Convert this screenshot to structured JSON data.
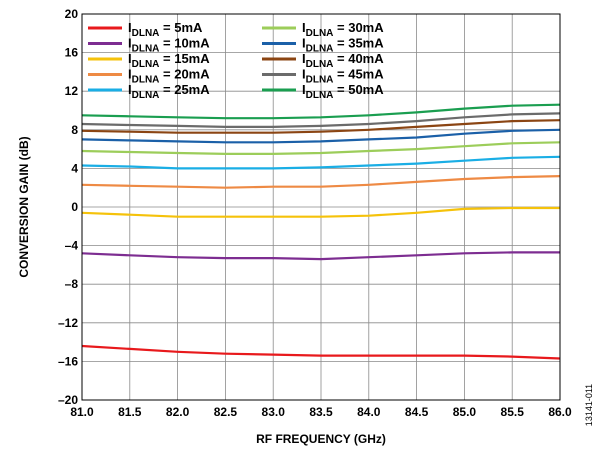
{
  "chart_data": {
    "type": "line",
    "title": "",
    "xlabel": "RF FREQUENCY (GHz)",
    "ylabel": "CONVERSION GAIN (dB)",
    "xlim": [
      81.0,
      86.0
    ],
    "ylim": [
      -20,
      20
    ],
    "x_ticks": [
      81.0,
      81.5,
      82.0,
      82.5,
      83.0,
      83.5,
      84.0,
      84.5,
      85.0,
      85.5,
      86.0
    ],
    "x_tick_labels": [
      "81.0",
      "81.5",
      "82.0",
      "82.5",
      "83.0",
      "83.5",
      "84.0",
      "84.5",
      "85.0",
      "85.5",
      "86.0"
    ],
    "y_ticks": [
      -20,
      -16,
      -12,
      -8,
      -4,
      0,
      4,
      8,
      12,
      16,
      20
    ],
    "y_tick_labels": [
      "–20",
      "–16",
      "–12",
      "–8",
      "–4",
      "0",
      "4",
      "8",
      "12",
      "16",
      "20"
    ],
    "grid": true,
    "legend_position": "top-left",
    "x": [
      81.0,
      81.5,
      82.0,
      82.5,
      83.0,
      83.5,
      84.0,
      84.5,
      85.0,
      85.5,
      86.0
    ],
    "series": [
      {
        "name": "I_DLNA = 5mA",
        "label_main": "I",
        "label_sub": "DLNA",
        "label_rest": " = 5mA",
        "color": "#e8191c",
        "values": [
          -14.4,
          -14.7,
          -15.0,
          -15.2,
          -15.3,
          -15.4,
          -15.4,
          -15.4,
          -15.4,
          -15.5,
          -15.7
        ]
      },
      {
        "name": "I_DLNA = 10mA",
        "label_main": "I",
        "label_sub": "DLNA",
        "label_rest": " = 10mA",
        "color": "#7d2d91",
        "values": [
          -4.8,
          -5.0,
          -5.2,
          -5.3,
          -5.3,
          -5.4,
          -5.2,
          -5.0,
          -4.8,
          -4.7,
          -4.7
        ]
      },
      {
        "name": "I_DLNA = 15mA",
        "label_main": "I",
        "label_sub": "DLNA",
        "label_rest": " = 15mA",
        "color": "#f5c20a",
        "values": [
          -0.6,
          -0.8,
          -1.0,
          -1.0,
          -1.0,
          -1.0,
          -0.9,
          -0.6,
          -0.2,
          -0.1,
          -0.1
        ]
      },
      {
        "name": "I_DLNA = 20mA",
        "label_main": "I",
        "label_sub": "DLNA",
        "label_rest": " = 20mA",
        "color": "#ee8a44",
        "values": [
          2.3,
          2.2,
          2.1,
          2.0,
          2.1,
          2.1,
          2.3,
          2.6,
          2.9,
          3.1,
          3.2
        ]
      },
      {
        "name": "I_DLNA = 25mA",
        "label_main": "I",
        "label_sub": "DLNA",
        "label_rest": " = 25mA",
        "color": "#1aaee5",
        "values": [
          4.3,
          4.2,
          4.0,
          4.0,
          4.0,
          4.1,
          4.3,
          4.5,
          4.8,
          5.1,
          5.2
        ]
      },
      {
        "name": "I_DLNA = 30mA",
        "label_main": "I",
        "label_sub": "DLNA",
        "label_rest": " = 30mA",
        "color": "#9ccd5a",
        "values": [
          5.8,
          5.7,
          5.6,
          5.5,
          5.5,
          5.6,
          5.8,
          6.0,
          6.3,
          6.6,
          6.7
        ]
      },
      {
        "name": "I_DLNA = 35mA",
        "label_main": "I",
        "label_sub": "DLNA",
        "label_rest": " = 35mA",
        "color": "#1b60a8",
        "values": [
          7.0,
          6.9,
          6.8,
          6.7,
          6.7,
          6.8,
          7.0,
          7.2,
          7.6,
          7.9,
          8.0
        ]
      },
      {
        "name": "I_DLNA = 40mA",
        "label_main": "I",
        "label_sub": "DLNA",
        "label_rest": " = 40mA",
        "color": "#8b4513",
        "values": [
          7.9,
          7.8,
          7.7,
          7.7,
          7.7,
          7.8,
          8.0,
          8.3,
          8.6,
          8.9,
          9.0
        ]
      },
      {
        "name": "I_DLNA = 45mA",
        "label_main": "I",
        "label_sub": "DLNA",
        "label_rest": " = 45mA",
        "color": "#6b6b6b",
        "values": [
          8.6,
          8.5,
          8.4,
          8.3,
          8.3,
          8.4,
          8.6,
          8.9,
          9.3,
          9.6,
          9.7
        ]
      },
      {
        "name": "I_DLNA = 50mA",
        "label_main": "I",
        "label_sub": "DLNA",
        "label_rest": " = 50mA",
        "color": "#1a9e50",
        "values": [
          9.5,
          9.4,
          9.3,
          9.2,
          9.2,
          9.3,
          9.5,
          9.8,
          10.2,
          10.5,
          10.6
        ]
      }
    ],
    "figure_id": "13141-011"
  }
}
